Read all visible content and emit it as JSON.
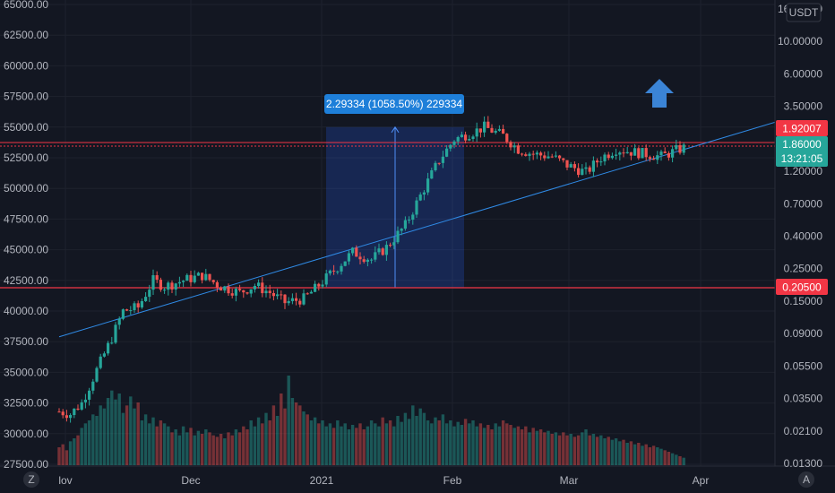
{
  "currency_button": "USDT",
  "bottom_left_icon": "Z",
  "bottom_right_icon": "A",
  "measure_label": "2.29334 (1058.50%) 229334",
  "price_badges": {
    "upper_line": "1.92007",
    "current_price": "1.86000",
    "countdown": "13:21:05",
    "lower_line": "0.20500"
  },
  "colors": {
    "background": "#131722",
    "up": "#26a69a",
    "down": "#ef5350",
    "trendline": "#2f8ae5",
    "horizontal_line": "#f23645",
    "measure_fill": "#2962ff",
    "arrow": "#3b84d6"
  },
  "chart_data": {
    "type": "candlestick",
    "title": "",
    "left_axis": {
      "ticks": [
        "65000.00",
        "62500.00",
        "60000.00",
        "57500.00",
        "55000.00",
        "52500.00",
        "50000.00",
        "47500.00",
        "45000.00",
        "42500.00",
        "40000.00",
        "37500.00",
        "35000.00",
        "32500.00",
        "30000.00",
        "27500.00"
      ],
      "ylim": [
        27000,
        65000
      ]
    },
    "right_axis": {
      "scale": "log",
      "ticks": [
        "16.00000",
        "10.00000",
        "6.00000",
        "3.50000",
        "2.00000",
        "1.20000",
        "0.70000",
        "0.40000",
        "0.25000",
        "0.15000",
        "0.09000",
        "0.05500",
        "0.03500",
        "0.02100",
        "0.01300"
      ]
    },
    "x_axis": {
      "ticks": [
        "lov",
        "Dec",
        "2021",
        "Feb",
        "Mar",
        "Apr"
      ]
    },
    "horizontal_lines": [
      {
        "name": "resistance",
        "price_left": 53600,
        "label": "1.92007"
      },
      {
        "name": "support",
        "price_left": 41900,
        "label": "0.20500"
      }
    ],
    "trendline": {
      "from": {
        "x": "Nov 2020",
        "price_left": 37900
      },
      "to": {
        "x": "Apr 2021",
        "price_left": 55400
      }
    },
    "measure": {
      "from_price_left": 41900,
      "to_price_left": 55000,
      "label": "2.29334 (1058.50%) 229334"
    },
    "anchors": [
      {
        "t": 0,
        "c": 31800
      },
      {
        "t": 3,
        "c": 31600
      },
      {
        "t": 6,
        "c": 32500
      },
      {
        "t": 10,
        "c": 35200
      },
      {
        "t": 14,
        "c": 37800
      },
      {
        "t": 17,
        "c": 40000
      },
      {
        "t": 21,
        "c": 40300
      },
      {
        "t": 25,
        "c": 42500
      },
      {
        "t": 28,
        "c": 42000
      },
      {
        "t": 33,
        "c": 42500
      },
      {
        "t": 38,
        "c": 42900
      },
      {
        "t": 43,
        "c": 42000
      },
      {
        "t": 48,
        "c": 41500
      },
      {
        "t": 52,
        "c": 42100
      },
      {
        "t": 56,
        "c": 41500
      },
      {
        "t": 60,
        "c": 40700
      },
      {
        "t": 65,
        "c": 41000
      },
      {
        "t": 68,
        "c": 41800
      },
      {
        "t": 72,
        "c": 43000
      },
      {
        "t": 78,
        "c": 44800
      },
      {
        "t": 83,
        "c": 44200
      },
      {
        "t": 87,
        "c": 45200
      },
      {
        "t": 92,
        "c": 47000
      },
      {
        "t": 97,
        "c": 50000
      },
      {
        "t": 101,
        "c": 52300
      },
      {
        "t": 105,
        "c": 54000
      },
      {
        "t": 110,
        "c": 54600
      },
      {
        "t": 113,
        "c": 55000
      },
      {
        "t": 118,
        "c": 54300
      },
      {
        "t": 122,
        "c": 53200
      },
      {
        "t": 126,
        "c": 52800
      },
      {
        "t": 131,
        "c": 52600
      },
      {
        "t": 135,
        "c": 51900
      },
      {
        "t": 140,
        "c": 51300
      },
      {
        "t": 144,
        "c": 52500
      },
      {
        "t": 148,
        "c": 53200
      },
      {
        "t": 152,
        "c": 53000
      },
      {
        "t": 156,
        "c": 52800
      },
      {
        "t": 160,
        "c": 52600
      },
      {
        "t": 164,
        "c": 53100
      },
      {
        "t": 166,
        "c": 53300
      }
    ],
    "volume": [
      12,
      14,
      10,
      16,
      18,
      20,
      25,
      28,
      30,
      34,
      33,
      40,
      38,
      45,
      50,
      44,
      48,
      35,
      40,
      46,
      38,
      42,
      30,
      34,
      28,
      32,
      26,
      30,
      28,
      26,
      22,
      24,
      20,
      26,
      22,
      25,
      20,
      23,
      21,
      24,
      22,
      20,
      19,
      21,
      18,
      22,
      20,
      24,
      22,
      26,
      24,
      30,
      26,
      32,
      28,
      35,
      30,
      40,
      33,
      48,
      38,
      60,
      45,
      42,
      40,
      36,
      34,
      30,
      32,
      28,
      30,
      26,
      28,
      25,
      30,
      26,
      28,
      24,
      27,
      25,
      28,
      24,
      26,
      30,
      28,
      26,
      32,
      28,
      30,
      26,
      33,
      29,
      35,
      31,
      40,
      33,
      38,
      35,
      30,
      28,
      32,
      30,
      34,
      28,
      30,
      26,
      29,
      27,
      31,
      28,
      30,
      26,
      28,
      25,
      27,
      24,
      28,
      26,
      30,
      28,
      27,
      25,
      26,
      24,
      26,
      22,
      25,
      23,
      24,
      22,
      23,
      21,
      22,
      20,
      22,
      20,
      21,
      19,
      20,
      22,
      24,
      20,
      21,
      19,
      20,
      18,
      19,
      17,
      18,
      16,
      17,
      15,
      16,
      14,
      15,
      13,
      14,
      12,
      13,
      12,
      11,
      10,
      9,
      8,
      7,
      6,
      5
    ]
  }
}
